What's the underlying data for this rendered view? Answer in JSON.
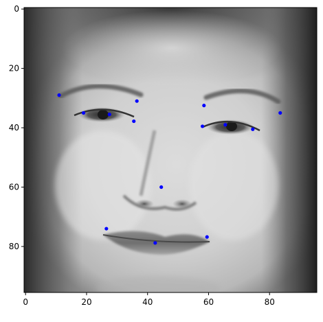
{
  "chart_data": {
    "type": "scatter",
    "background": "grayscale face photograph (96x96 image)",
    "xlim": [
      -0.5,
      95.5
    ],
    "ylim": [
      95.5,
      -0.5
    ],
    "y_inverted": true,
    "grid": false,
    "legend": "none",
    "title": "",
    "xlabel": "",
    "ylabel": "",
    "x_ticks": [
      {
        "value": 0,
        "label": "0"
      },
      {
        "value": 20,
        "label": "20"
      },
      {
        "value": 40,
        "label": "40"
      },
      {
        "value": 60,
        "label": "60"
      },
      {
        "value": 80,
        "label": "80"
      }
    ],
    "y_ticks": [
      {
        "value": 0,
        "label": "0"
      },
      {
        "value": 20,
        "label": "20"
      },
      {
        "value": 40,
        "label": "40"
      },
      {
        "value": 60,
        "label": "60"
      },
      {
        "value": 80,
        "label": "80"
      }
    ],
    "marker_color": "#0000ff",
    "points": [
      {
        "x": 11.0,
        "y": 29.0
      },
      {
        "x": 19.0,
        "y": 35.0
      },
      {
        "x": 27.5,
        "y": 35.5
      },
      {
        "x": 36.5,
        "y": 31.0
      },
      {
        "x": 35.5,
        "y": 37.8
      },
      {
        "x": 58.5,
        "y": 32.5
      },
      {
        "x": 58.0,
        "y": 39.5
      },
      {
        "x": 65.5,
        "y": 39.0
      },
      {
        "x": 74.5,
        "y": 40.5
      },
      {
        "x": 83.5,
        "y": 35.0
      },
      {
        "x": 44.5,
        "y": 60.0
      },
      {
        "x": 26.5,
        "y": 74.0
      },
      {
        "x": 42.5,
        "y": 78.8
      },
      {
        "x": 59.5,
        "y": 76.8
      }
    ]
  }
}
